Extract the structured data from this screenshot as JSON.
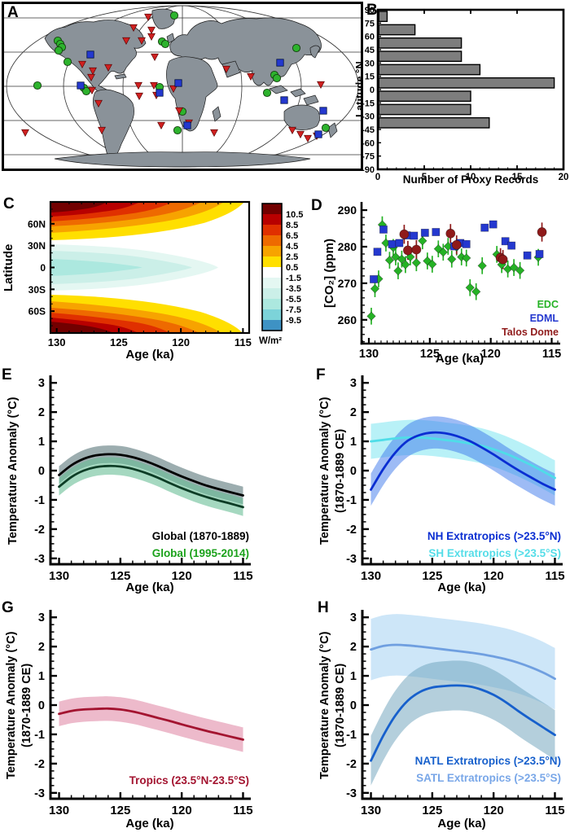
{
  "map": {
    "letter": "A",
    "land_color": "#8a9299",
    "ocean_color": "#ffffff",
    "markers": {
      "green_circle": {
        "color": "#2db32d",
        "points": [
          [
            209,
            14
          ],
          [
            194,
            46
          ],
          [
            198,
            49
          ],
          [
            66,
            45
          ],
          [
            69,
            49
          ],
          [
            71,
            53
          ],
          [
            67,
            57
          ],
          [
            78,
            71
          ],
          [
            41,
            100
          ],
          [
            98,
            103
          ],
          [
            101,
            107
          ],
          [
            191,
            102
          ],
          [
            219,
            132
          ],
          [
            213,
            155
          ],
          [
            359,
            54
          ],
          [
            332,
            87
          ],
          [
            335,
            91
          ],
          [
            323,
            109
          ],
          [
            395,
            152
          ]
        ]
      },
      "blue_square": {
        "color": "#2438cf",
        "points": [
          [
            106,
            62
          ],
          [
            94,
            100
          ],
          [
            214,
            97
          ],
          [
            191,
            109
          ],
          [
            225,
            149
          ],
          [
            339,
            72
          ],
          [
            344,
            118
          ],
          [
            392,
            131
          ],
          [
            386,
            160
          ]
        ]
      },
      "red_triangle": {
        "color": "#cf2020",
        "points": [
          [
            177,
            16
          ],
          [
            159,
            29
          ],
          [
            181,
            32
          ],
          [
            150,
            45
          ],
          [
            169,
            45
          ],
          [
            181,
            40
          ],
          [
            185,
            65
          ],
          [
            96,
            74
          ],
          [
            109,
            82
          ],
          [
            128,
            78
          ],
          [
            107,
            90
          ],
          [
            165,
            100
          ],
          [
            184,
            100
          ],
          [
            208,
            104
          ],
          [
            187,
            112
          ],
          [
            166,
            113
          ],
          [
            108,
            106
          ],
          [
            116,
            122
          ],
          [
            120,
            155
          ],
          [
            26,
            158
          ],
          [
            193,
            149
          ],
          [
            215,
            131
          ],
          [
            227,
            146
          ],
          [
            258,
            158
          ],
          [
            273,
            80
          ],
          [
            303,
            89
          ],
          [
            389,
            99
          ],
          [
            354,
            155
          ],
          [
            364,
            160
          ],
          [
            373,
            165
          ],
          [
            384,
            162
          ]
        ]
      }
    }
  },
  "chart_data": [
    {
      "id": "B",
      "letter": "B",
      "type": "bar",
      "orientation": "horizontal",
      "xlabel": "Number of Proxy Records",
      "ylabel": "Latitude °N",
      "bar_color": "#7d7d7d",
      "xlim": [
        0,
        20
      ],
      "xticks": [
        0,
        5,
        10,
        15,
        20
      ],
      "yticks": [
        90,
        75,
        60,
        45,
        30,
        15,
        0,
        -15,
        -30,
        -45,
        -60,
        -75,
        -90
      ],
      "bin_tops": [
        90,
        75,
        60,
        45,
        30,
        15,
        0,
        -15,
        -30
      ],
      "values": [
        1,
        4,
        9,
        9,
        11,
        19,
        10,
        10,
        12
      ]
    },
    {
      "id": "C",
      "letter": "C",
      "type": "heatmap",
      "xlabel": "Age (ka)",
      "ylabel": "Latitude",
      "xticks": [
        130,
        125,
        120,
        115
      ],
      "ytick_labels": [
        "60N",
        "30N",
        "0",
        "30S",
        "60S"
      ],
      "ytick_lats": [
        60,
        30,
        0,
        -30,
        -60
      ],
      "colorbar": {
        "unit": "W/m²",
        "labels": [
          "10.5",
          "8.5",
          "6.5",
          "4.5",
          "2.5",
          "0.5",
          "-1.5",
          "-3.5",
          "-5.5",
          "-7.5",
          "-9.5"
        ],
        "colors": [
          "#720000",
          "#b80000",
          "#e03000",
          "#ee6a00",
          "#f7a300",
          "#ffdf00",
          "#ffffff",
          "#e4f7f2",
          "#cbefe8",
          "#ace8df",
          "#7cd3d9",
          "#3e92c4"
        ]
      },
      "description": "Zonal mean insolation anomaly (W/m²) vs age, positive at high latitudes, negative in tropics"
    },
    {
      "id": "D",
      "letter": "D",
      "type": "scatter",
      "xlabel": "Age (ka)",
      "ylabel": "[CO₂] (ppm)",
      "ylim": [
        253.5,
        291.8
      ],
      "yticks": [
        260,
        270,
        280,
        290
      ],
      "xticks": [
        130,
        125,
        120,
        115
      ],
      "series": [
        {
          "name": "EDC",
          "color": "#25b225",
          "marker": "diamond",
          "err": 2.3,
          "points": [
            [
              129.8,
              261.0
            ],
            [
              129.5,
              268.5
            ],
            [
              129.2,
              271.2
            ],
            [
              128.9,
              286.0
            ],
            [
              128.6,
              281.0
            ],
            [
              128.3,
              276.3
            ],
            [
              128.0,
              279.8
            ],
            [
              127.8,
              277.2
            ],
            [
              127.6,
              273.4
            ],
            [
              127.3,
              276.6
            ],
            [
              127.0,
              275.1
            ],
            [
              126.6,
              277.2
            ],
            [
              126.1,
              275.6
            ],
            [
              125.6,
              281.6
            ],
            [
              125.2,
              276.1
            ],
            [
              124.8,
              275.2
            ],
            [
              124.3,
              279.4
            ],
            [
              123.9,
              278.5
            ],
            [
              123.5,
              280.1
            ],
            [
              123.2,
              276.6
            ],
            [
              122.8,
              279.9
            ],
            [
              122.4,
              277.2
            ],
            [
              122.0,
              276.9
            ],
            [
              121.7,
              268.8
            ],
            [
              121.2,
              267.7
            ],
            [
              120.7,
              274.8
            ],
            [
              119.5,
              277.9
            ],
            [
              119.1,
              275.1
            ],
            [
              118.6,
              273.9
            ],
            [
              118.1,
              274.3
            ],
            [
              117.6,
              273.5
            ],
            [
              116.1,
              277.1
            ]
          ]
        },
        {
          "name": "EDML",
          "color": "#2438cf",
          "marker": "square",
          "err": 1.0,
          "points": [
            [
              129.6,
              271.1
            ],
            [
              129.3,
              278.6
            ],
            [
              128.8,
              284.7
            ],
            [
              128.1,
              280.7
            ],
            [
              127.5,
              281.0
            ],
            [
              126.9,
              283.1
            ],
            [
              126.3,
              283.0
            ],
            [
              125.4,
              283.8
            ],
            [
              124.5,
              284.0
            ],
            [
              123.0,
              280.1
            ],
            [
              122.5,
              281.0
            ],
            [
              122.0,
              280.7
            ],
            [
              120.5,
              285.2
            ],
            [
              119.8,
              286.1
            ],
            [
              118.8,
              281.5
            ],
            [
              118.3,
              280.3
            ],
            [
              117.0,
              277.6
            ],
            [
              116.0,
              278.0
            ]
          ]
        },
        {
          "name": "Talos Dome",
          "color": "#8f1a1a",
          "marker": "circle",
          "err": 2.6,
          "points": [
            [
              127.1,
              283.4
            ],
            [
              126.8,
              279.0
            ],
            [
              126.1,
              279.2
            ],
            [
              123.3,
              283.6
            ],
            [
              122.8,
              280.5
            ],
            [
              119.2,
              277.0
            ],
            [
              119.0,
              276.5
            ],
            [
              115.8,
              284.0
            ]
          ]
        }
      ]
    },
    {
      "id": "E",
      "letter": "E",
      "type": "line",
      "xlabel": "Age (ka)",
      "ylabel": "Temperature Anomaly (°C)",
      "ylim": [
        -3,
        3
      ],
      "xticks": [
        130,
        125,
        120,
        115
      ],
      "x_start": 130,
      "x_step": -1,
      "series": [
        {
          "name": "Global (1870-1889)",
          "color": "#000000",
          "band_color": "rgba(75,105,110,0.55)",
          "legend_color": "#000000",
          "band": 0.3,
          "values": [
            -0.15,
            0.18,
            0.4,
            0.52,
            0.56,
            0.54,
            0.46,
            0.33,
            0.17,
            -0.02,
            -0.2,
            -0.36,
            -0.51,
            -0.63,
            -0.74,
            -0.85
          ]
        },
        {
          "name": "Global (1995-2014)",
          "color": "#0d3d26",
          "band_color": "rgba(105,190,150,0.6)",
          "legend_color": "#1ca21c",
          "band": 0.3,
          "values": [
            -0.55,
            -0.22,
            0.0,
            0.12,
            0.16,
            0.14,
            0.06,
            -0.07,
            -0.23,
            -0.42,
            -0.6,
            -0.76,
            -0.9,
            -1.02,
            -1.13,
            -1.25
          ]
        }
      ]
    },
    {
      "id": "F",
      "letter": "F",
      "type": "line",
      "xlabel": "Age (ka)",
      "ylabel": "Temperature Anomaly (°C)",
      "ylabel2": "(1870-1889 CE)",
      "ylim": [
        -3,
        3
      ],
      "xticks": [
        130,
        125,
        120,
        115
      ],
      "x_start": 130,
      "x_step": -1,
      "series": [
        {
          "name": "SH Extratropics (>23.5°S)",
          "color": "#4fdde8",
          "band_color": "rgba(125,230,240,0.55)",
          "legend_color": "#55dde8",
          "band": 0.6,
          "values": [
            1.0,
            1.05,
            1.1,
            1.13,
            1.13,
            1.1,
            1.05,
            1.0,
            0.93,
            0.85,
            0.73,
            0.58,
            0.4,
            0.2,
            -0.02,
            -0.25
          ]
        },
        {
          "name": "NH Extratropics (>23.5°N)",
          "color": "#0a2ed2",
          "band_color": "rgba(60,120,235,0.5)",
          "legend_color": "#0a2ed2",
          "band": 0.55,
          "values": [
            -0.65,
            0.05,
            0.62,
            1.02,
            1.22,
            1.3,
            1.28,
            1.18,
            1.02,
            0.8,
            0.55,
            0.28,
            0.02,
            -0.22,
            -0.45,
            -0.65
          ]
        }
      ]
    },
    {
      "id": "G",
      "letter": "G",
      "type": "line",
      "xlabel": "Age (ka)",
      "ylabel": "Temperature Anomaly (°C)",
      "ylabel2": "(1870-1889 CE)",
      "ylim": [
        -3,
        3
      ],
      "xticks": [
        130,
        125,
        120,
        115
      ],
      "x_start": 130,
      "x_step": -1,
      "series": [
        {
          "name": "Tropics (23.5°N-23.5°S)",
          "color": "#a31430",
          "band_color": "rgba(222,130,160,0.55)",
          "legend_color": "#a31430",
          "band": 0.42,
          "values": [
            -0.3,
            -0.2,
            -0.15,
            -0.13,
            -0.12,
            -0.15,
            -0.22,
            -0.32,
            -0.43,
            -0.54,
            -0.66,
            -0.77,
            -0.88,
            -0.98,
            -1.08,
            -1.18
          ]
        }
      ]
    },
    {
      "id": "H",
      "letter": "H",
      "type": "line",
      "xlabel": "Age (ka)",
      "ylabel": "Temperature Anomaly (°C)",
      "ylabel2": "(1870-1889 CE)",
      "ylim": [
        -3,
        3
      ],
      "xticks": [
        130,
        125,
        120,
        115
      ],
      "x_start": 130,
      "x_step": -1,
      "series": [
        {
          "name": "SATL Extratropics (>23.5°S)",
          "color": "#6f9fe0",
          "band_color": "rgba(155,205,242,0.5)",
          "legend_color": "#79a7e8",
          "band": 1.05,
          "values": [
            1.9,
            2.02,
            2.06,
            2.04,
            2.0,
            1.95,
            1.9,
            1.85,
            1.8,
            1.74,
            1.66,
            1.57,
            1.45,
            1.3,
            1.12,
            0.9
          ]
        },
        {
          "name": "NATL Extratropics (>23.5°N)",
          "color": "#1760cc",
          "band_color": "rgba(105,160,185,0.5)",
          "legend_color": "#1760cc",
          "band": 0.85,
          "values": [
            -1.9,
            -1.05,
            -0.35,
            0.15,
            0.45,
            0.6,
            0.65,
            0.67,
            0.64,
            0.53,
            0.35,
            0.1,
            -0.2,
            -0.48,
            -0.75,
            -1.02
          ]
        }
      ]
    }
  ]
}
